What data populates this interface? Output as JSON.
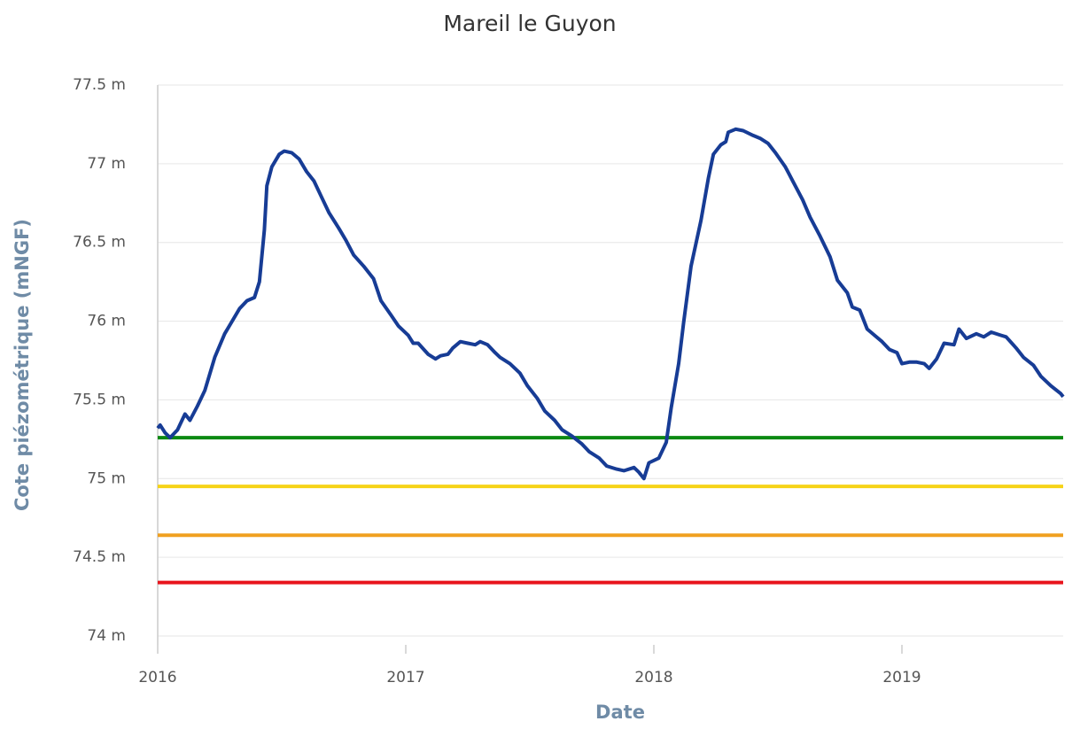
{
  "chart_data": {
    "type": "line",
    "title": "Mareil le Guyon",
    "x_label": "Date",
    "y_label": "Cote piézométrique (mNGF)",
    "xlim": [
      2016,
      2019.65
    ],
    "xticks": [
      2016,
      2017,
      2018,
      2019
    ],
    "ylim": [
      74,
      77.5
    ],
    "yticks": [
      {
        "value": 74,
        "label": "74 m"
      },
      {
        "value": 74.5,
        "label": "74.5 m"
      },
      {
        "value": 75,
        "label": "75 m"
      },
      {
        "value": 75.5,
        "label": "75.5 m"
      },
      {
        "value": 76,
        "label": "76 m"
      },
      {
        "value": 76.5,
        "label": "76.5 m"
      },
      {
        "value": 77,
        "label": "77 m"
      },
      {
        "value": 77.5,
        "label": "77.5 m"
      }
    ],
    "grid": true,
    "thresholds": [
      {
        "value": 75.26,
        "color": "#0b8a12"
      },
      {
        "value": 74.95,
        "color": "#f6d317"
      },
      {
        "value": 74.64,
        "color": "#f0a020"
      },
      {
        "value": 74.34,
        "color": "#e8141c"
      }
    ],
    "series": [
      {
        "color": "#173c95",
        "x": [
          2016.0,
          2016.01,
          2016.03,
          2016.05,
          2016.08,
          2016.11,
          2016.13,
          2016.16,
          2016.19,
          2016.23,
          2016.27,
          2016.3,
          2016.33,
          2016.36,
          2016.39,
          2016.41,
          2016.43,
          2016.44,
          2016.46,
          2016.49,
          2016.51,
          2016.54,
          2016.57,
          2016.6,
          2016.63,
          2016.66,
          2016.69,
          2016.73,
          2016.76,
          2016.79,
          2016.83,
          2016.87,
          2016.9,
          2016.94,
          2016.97,
          2017.01,
          2017.03,
          2017.05,
          2017.09,
          2017.12,
          2017.14,
          2017.17,
          2017.19,
          2017.22,
          2017.25,
          2017.28,
          2017.3,
          2017.33,
          2017.36,
          2017.38,
          2017.42,
          2017.46,
          2017.49,
          2017.53,
          2017.56,
          2017.6,
          2017.63,
          2017.67,
          2017.71,
          2017.74,
          2017.78,
          2017.81,
          2017.85,
          2017.88,
          2017.92,
          2017.94,
          2017.96,
          2017.98,
          2018.02,
          2018.05,
          2018.07,
          2018.1,
          2018.12,
          2018.15,
          2018.19,
          2018.22,
          2018.24,
          2018.27,
          2018.29,
          2018.3,
          2018.33,
          2018.36,
          2018.4,
          2018.43,
          2018.46,
          2018.49,
          2018.53,
          2018.56,
          2018.6,
          2018.63,
          2018.67,
          2018.71,
          2018.74,
          2018.78,
          2018.8,
          2018.83,
          2018.86,
          2018.89,
          2018.92,
          2018.95,
          2018.98,
          2019.0,
          2019.03,
          2019.06,
          2019.09,
          2019.11,
          2019.14,
          2019.17,
          2019.21,
          2019.23,
          2019.26,
          2019.3,
          2019.33,
          2019.36,
          2019.4,
          2019.42,
          2019.46,
          2019.49,
          2019.53,
          2019.56,
          2019.6,
          2019.64,
          2019.65
        ],
        "values": [
          75.32,
          75.34,
          75.29,
          75.26,
          75.31,
          75.41,
          75.37,
          75.46,
          75.56,
          75.77,
          75.92,
          76.0,
          76.08,
          76.13,
          76.15,
          76.25,
          76.58,
          76.86,
          76.98,
          77.06,
          77.08,
          77.07,
          77.03,
          76.95,
          76.89,
          76.79,
          76.69,
          76.59,
          76.51,
          76.42,
          76.35,
          76.27,
          76.13,
          76.04,
          75.97,
          75.91,
          75.86,
          75.86,
          75.79,
          75.76,
          75.78,
          75.79,
          75.83,
          75.87,
          75.86,
          75.85,
          75.87,
          75.85,
          75.8,
          75.77,
          75.73,
          75.67,
          75.59,
          75.51,
          75.43,
          75.37,
          75.31,
          75.27,
          75.22,
          75.17,
          75.13,
          75.08,
          75.06,
          75.05,
          75.07,
          75.04,
          75.0,
          75.1,
          75.13,
          75.23,
          75.45,
          75.73,
          75.99,
          76.35,
          76.64,
          76.91,
          77.06,
          77.12,
          77.14,
          77.2,
          77.22,
          77.21,
          77.18,
          77.16,
          77.13,
          77.07,
          76.98,
          76.89,
          76.77,
          76.66,
          76.54,
          76.41,
          76.26,
          76.18,
          76.09,
          76.07,
          75.95,
          75.91,
          75.87,
          75.82,
          75.8,
          75.73,
          75.74,
          75.74,
          75.73,
          75.7,
          75.76,
          75.86,
          75.85,
          75.95,
          75.89,
          75.92,
          75.9,
          75.93,
          75.91,
          75.9,
          75.83,
          75.77,
          75.72,
          75.65,
          75.59,
          75.54,
          75.52
        ]
      }
    ]
  }
}
